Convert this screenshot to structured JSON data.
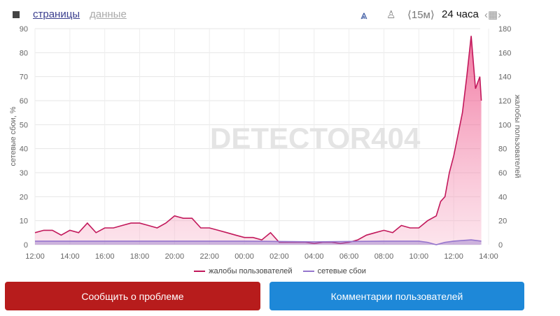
{
  "nav": {
    "pages": "страницы",
    "data": "данные",
    "interval": "⟨15м⟩",
    "range": "24 часа"
  },
  "icons": [
    "camera-icon",
    "chart-icon",
    "user-icon",
    "calendar-icon"
  ],
  "buttons": {
    "report": "Сообщить о проблеме",
    "comments": "Комментарии пользователей"
  },
  "colors": {
    "complaints": "#c2185b",
    "network": "#9575cd",
    "report": "#b71c1c",
    "comments": "#1e88d8"
  },
  "watermark": "DETECTOR404",
  "chart_data": {
    "type": "area",
    "x_ticks": [
      "12:00",
      "14:00",
      "16:00",
      "18:00",
      "20:00",
      "22:00",
      "00:00",
      "02:00",
      "04:00",
      "06:00",
      "08:00",
      "10:00",
      "12:00",
      "14:00"
    ],
    "y_left": {
      "label": "сетевые сбои, %",
      "range": [
        0,
        90
      ],
      "ticks": [
        0,
        10,
        20,
        30,
        40,
        50,
        60,
        70,
        80,
        90
      ]
    },
    "y_right": {
      "label": "жалобы пользователей",
      "range": [
        0,
        180
      ],
      "ticks": [
        0,
        20,
        40,
        60,
        80,
        100,
        120,
        140,
        160,
        180
      ]
    },
    "grid": true,
    "legend": "bottom",
    "series": [
      {
        "name": "жалобы пользователей",
        "axis": "right",
        "x": [
          "12:00",
          "12:30",
          "13:00",
          "13:30",
          "14:00",
          "14:30",
          "15:00",
          "15:30",
          "16:00",
          "16:30",
          "17:00",
          "17:30",
          "18:00",
          "18:30",
          "19:00",
          "19:30",
          "20:00",
          "20:30",
          "21:00",
          "21:30",
          "22:00",
          "22:30",
          "23:00",
          "23:30",
          "00:00",
          "00:30",
          "01:00",
          "01:30",
          "02:00",
          "02:30",
          "03:00",
          "03:30",
          "04:00",
          "04:30",
          "05:00",
          "05:30",
          "06:00",
          "06:30",
          "07:00",
          "07:30",
          "08:00",
          "08:30",
          "09:00",
          "09:30",
          "10:00",
          "10:30",
          "11:00",
          "11:15",
          "11:30",
          "11:45",
          "12:00",
          "12:30",
          "12:45",
          "13:00",
          "13:15",
          "13:30",
          "13:35"
        ],
        "values": [
          10,
          12,
          12,
          8,
          12,
          10,
          18,
          10,
          14,
          14,
          16,
          18,
          18,
          16,
          14,
          18,
          24,
          22,
          22,
          14,
          14,
          12,
          10,
          8,
          6,
          6,
          4,
          10,
          2,
          2,
          2,
          2,
          1,
          2,
          2,
          1,
          2,
          4,
          8,
          10,
          12,
          10,
          16,
          14,
          14,
          20,
          24,
          36,
          40,
          60,
          74,
          110,
          140,
          174,
          130,
          140,
          120
        ]
      },
      {
        "name": "сетевые сбои",
        "axis": "left",
        "x": [
          "12:00",
          "16:00",
          "20:00",
          "00:00",
          "04:00",
          "08:00",
          "10:00",
          "10:30",
          "11:00",
          "11:30",
          "12:00",
          "13:00",
          "13:35"
        ],
        "values": [
          1.5,
          1.5,
          1.5,
          1.5,
          1.2,
          1.5,
          1.5,
          1,
          0,
          1,
          1.5,
          2,
          1.5
        ]
      }
    ]
  }
}
